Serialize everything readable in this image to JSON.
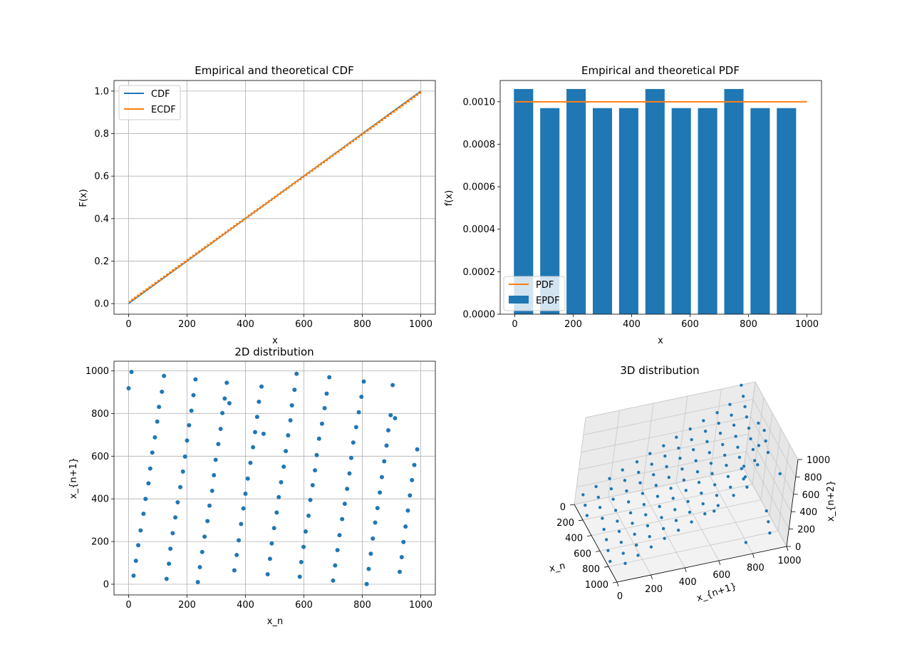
{
  "colors": {
    "blue": "#1f77b4",
    "orange": "#ff7f0e",
    "grid": "#b0b0b0"
  },
  "chart_data": [
    {
      "type": "line",
      "title": "Empirical and theoretical CDF",
      "xlabel": "x",
      "ylabel": "F(x)",
      "xlim": [
        -50,
        1050
      ],
      "ylim": [
        -0.05,
        1.05
      ],
      "xticks": [
        0,
        200,
        400,
        600,
        800,
        1000
      ],
      "yticks": [
        0.0,
        0.2,
        0.4,
        0.6,
        0.8,
        1.0
      ],
      "xtick_labels": [
        "0",
        "200",
        "400",
        "600",
        "800",
        "1000"
      ],
      "ytick_labels": [
        "0.0",
        "0.2",
        "0.4",
        "0.6",
        "0.8",
        "1.0"
      ],
      "grid": true,
      "legend": "upper-left",
      "series": [
        {
          "name": "CDF",
          "color": "#1f77b4",
          "x": [
            0,
            1000
          ],
          "y": [
            0.0,
            1.0
          ]
        },
        {
          "name": "ECDF",
          "color": "#ff7f0e",
          "x": [
            0,
            1000
          ],
          "y": [
            0.01,
            1.0
          ],
          "step": true
        }
      ]
    },
    {
      "type": "bar",
      "title": "Empirical and theoretical PDF",
      "xlabel": "x",
      "ylabel": "f(x)",
      "xlim": [
        -50,
        1050
      ],
      "ylim": [
        0,
        0.0011
      ],
      "xticks": [
        0,
        200,
        400,
        600,
        800,
        1000
      ],
      "yticks": [
        0.0,
        0.0002,
        0.0004,
        0.0006,
        0.0008,
        0.001
      ],
      "xtick_labels": [
        "0",
        "200",
        "400",
        "600",
        "800",
        "1000"
      ],
      "ytick_labels": [
        "0.0000",
        "0.0002",
        "0.0004",
        "0.0006",
        "0.0008",
        "0.0010"
      ],
      "grid": false,
      "legend": "lower-left",
      "bar_width": 66,
      "bars": {
        "name": "EPDF",
        "color": "#1f77b4",
        "x": [
          30,
          120,
          210,
          300,
          390,
          480,
          570,
          660,
          750,
          840,
          930
        ],
        "values": [
          0.00106,
          0.00097,
          0.00106,
          0.00097,
          0.00097,
          0.00106,
          0.00097,
          0.00097,
          0.00106,
          0.00097,
          0.00097
        ]
      },
      "line": {
        "name": "PDF",
        "color": "#ff7f0e",
        "x": [
          0,
          1000
        ],
        "y": [
          0.001,
          0.001
        ]
      }
    },
    {
      "type": "scatter",
      "title": "2D distribution",
      "xlabel": "x_n",
      "ylabel": "x_{n+1}",
      "xlim": [
        -50,
        1050
      ],
      "ylim": [
        -50,
        1045
      ],
      "xticks": [
        0,
        200,
        400,
        600,
        800,
        1000
      ],
      "yticks": [
        0,
        200,
        400,
        600,
        800,
        1000
      ],
      "xtick_labels": [
        "0",
        "200",
        "400",
        "600",
        "800",
        "1000"
      ],
      "ytick_labels": [
        "0",
        "200",
        "400",
        "600",
        "800",
        "1000"
      ],
      "grid": true,
      "color": "#1f77b4",
      "points": [
        [
          0,
          918
        ],
        [
          10,
          995
        ],
        [
          17,
          40
        ],
        [
          25,
          110
        ],
        [
          33,
          183
        ],
        [
          41,
          252
        ],
        [
          51,
          330
        ],
        [
          58,
          400
        ],
        [
          68,
          473
        ],
        [
          74,
          542
        ],
        [
          81,
          617
        ],
        [
          90,
          688
        ],
        [
          98,
          762
        ],
        [
          104,
          831
        ],
        [
          114,
          902
        ],
        [
          121,
          976
        ],
        [
          130,
          25
        ],
        [
          138,
          96
        ],
        [
          143,
          166
        ],
        [
          151,
          239
        ],
        [
          160,
          313
        ],
        [
          168,
          384
        ],
        [
          177,
          455
        ],
        [
          186,
          528
        ],
        [
          193,
          598
        ],
        [
          200,
          673
        ],
        [
          207,
          745
        ],
        [
          215,
          813
        ],
        [
          222,
          886
        ],
        [
          229,
          960
        ],
        [
          237,
          10
        ],
        [
          244,
          80
        ],
        [
          252,
          151
        ],
        [
          260,
          223
        ],
        [
          270,
          296
        ],
        [
          277,
          368
        ],
        [
          286,
          438
        ],
        [
          292,
          511
        ],
        [
          298,
          583
        ],
        [
          307,
          657
        ],
        [
          315,
          728
        ],
        [
          321,
          802
        ],
        [
          329,
          870
        ],
        [
          336,
          944
        ],
        [
          345,
          848
        ],
        [
          362,
          65
        ],
        [
          370,
          137
        ],
        [
          377,
          206
        ],
        [
          385,
          282
        ],
        [
          393,
          355
        ],
        [
          400,
          424
        ],
        [
          408,
          495
        ],
        [
          417,
          569
        ],
        [
          426,
          642
        ],
        [
          433,
          713
        ],
        [
          440,
          784
        ],
        [
          446,
          855
        ],
        [
          455,
          926
        ],
        [
          462,
          705
        ],
        [
          476,
          47
        ],
        [
          484,
          119
        ],
        [
          490,
          191
        ],
        [
          498,
          263
        ],
        [
          507,
          336
        ],
        [
          514,
          408
        ],
        [
          522,
          478
        ],
        [
          531,
          551
        ],
        [
          538,
          624
        ],
        [
          546,
          698
        ],
        [
          554,
          768
        ],
        [
          559,
          838
        ],
        [
          568,
          911
        ],
        [
          575,
          986
        ],
        [
          586,
          35
        ],
        [
          591,
          104
        ],
        [
          599,
          175
        ],
        [
          606,
          247
        ],
        [
          616,
          321
        ],
        [
          622,
          395
        ],
        [
          630,
          464
        ],
        [
          638,
          534
        ],
        [
          644,
          605
        ],
        [
          652,
          682
        ],
        [
          662,
          752
        ],
        [
          671,
          825
        ],
        [
          678,
          893
        ],
        [
          687,
          970
        ],
        [
          700,
          17
        ],
        [
          707,
          88
        ],
        [
          715,
          160
        ],
        [
          722,
          230
        ],
        [
          731,
          305
        ],
        [
          740,
          377
        ],
        [
          748,
          447
        ],
        [
          756,
          519
        ],
        [
          762,
          592
        ],
        [
          769,
          664
        ],
        [
          779,
          736
        ],
        [
          788,
          806
        ],
        [
          797,
          878
        ],
        [
          805,
          950
        ],
        [
          815,
          1
        ],
        [
          822,
          72
        ],
        [
          829,
          143
        ],
        [
          836,
          214
        ],
        [
          844,
          289
        ],
        [
          852,
          357
        ],
        [
          860,
          430
        ],
        [
          867,
          502
        ],
        [
          875,
          576
        ],
        [
          883,
          650
        ],
        [
          889,
          721
        ],
        [
          897,
          792
        ],
        [
          904,
          933
        ],
        [
          912,
          778
        ],
        [
          928,
          58
        ],
        [
          935,
          127
        ],
        [
          941,
          198
        ],
        [
          948,
          270
        ],
        [
          956,
          345
        ],
        [
          963,
          416
        ],
        [
          970,
          488
        ],
        [
          978,
          559
        ],
        [
          988,
          632
        ]
      ]
    },
    {
      "type": "scatter",
      "title": "3D distribution",
      "xlabel": "x_n",
      "ylabel": "x_{n+1}",
      "zlabel": "x_{n+2}",
      "xlim": [
        0,
        1000
      ],
      "ylim": [
        0,
        1000
      ],
      "zlim": [
        0,
        1000
      ],
      "xticks": [
        0,
        200,
        400,
        600,
        800,
        1000
      ],
      "yticks": [
        0,
        200,
        400,
        600,
        800,
        1000
      ],
      "zticks": [
        0,
        200,
        400,
        600,
        800,
        1000
      ],
      "xtick_labels": [
        "0",
        "200",
        "400",
        "600",
        "800",
        "1000"
      ],
      "ytick_labels": [
        "0",
        "200",
        "400",
        "600",
        "800",
        "1000"
      ],
      "ztick_labels": [
        "0",
        "200",
        "400",
        "600",
        "800",
        "1000"
      ],
      "grid": true,
      "color": "#1f77b4",
      "points": [
        [
          0,
          918,
          995
        ],
        [
          10,
          995,
          40
        ],
        [
          17,
          40,
          110
        ],
        [
          25,
          110,
          183
        ],
        [
          33,
          183,
          252
        ],
        [
          41,
          252,
          330
        ],
        [
          51,
          330,
          400
        ],
        [
          58,
          400,
          473
        ],
        [
          68,
          473,
          542
        ],
        [
          74,
          542,
          617
        ],
        [
          81,
          617,
          688
        ],
        [
          90,
          688,
          762
        ],
        [
          98,
          762,
          831
        ],
        [
          104,
          831,
          902
        ],
        [
          114,
          902,
          976
        ],
        [
          121,
          976,
          25
        ],
        [
          130,
          25,
          96
        ],
        [
          138,
          96,
          166
        ],
        [
          143,
          166,
          239
        ],
        [
          151,
          239,
          313
        ],
        [
          160,
          313,
          384
        ],
        [
          168,
          384,
          455
        ],
        [
          177,
          455,
          528
        ],
        [
          186,
          528,
          598
        ],
        [
          193,
          598,
          673
        ],
        [
          200,
          673,
          745
        ],
        [
          207,
          745,
          813
        ],
        [
          215,
          813,
          886
        ],
        [
          222,
          886,
          960
        ],
        [
          229,
          960,
          10
        ],
        [
          237,
          10,
          80
        ],
        [
          244,
          80,
          151
        ],
        [
          252,
          151,
          223
        ],
        [
          260,
          223,
          296
        ],
        [
          270,
          296,
          368
        ],
        [
          277,
          368,
          438
        ],
        [
          286,
          438,
          511
        ],
        [
          292,
          511,
          583
        ],
        [
          298,
          583,
          657
        ],
        [
          307,
          657,
          728
        ],
        [
          315,
          728,
          802
        ],
        [
          321,
          802,
          870
        ],
        [
          329,
          870,
          944
        ],
        [
          336,
          944,
          848
        ],
        [
          345,
          848,
          65
        ],
        [
          362,
          65,
          137
        ],
        [
          370,
          137,
          206
        ],
        [
          377,
          206,
          282
        ],
        [
          385,
          282,
          355
        ],
        [
          393,
          355,
          424
        ],
        [
          400,
          424,
          495
        ],
        [
          408,
          495,
          569
        ],
        [
          417,
          569,
          642
        ],
        [
          426,
          642,
          713
        ],
        [
          433,
          713,
          784
        ],
        [
          440,
          784,
          855
        ],
        [
          446,
          855,
          926
        ],
        [
          455,
          926,
          705
        ],
        [
          462,
          705,
          47
        ],
        [
          476,
          47,
          119
        ],
        [
          484,
          119,
          191
        ],
        [
          490,
          191,
          263
        ],
        [
          498,
          263,
          336
        ],
        [
          507,
          336,
          408
        ],
        [
          514,
          408,
          478
        ],
        [
          522,
          478,
          551
        ],
        [
          531,
          551,
          624
        ],
        [
          538,
          624,
          698
        ],
        [
          546,
          698,
          768
        ],
        [
          554,
          768,
          838
        ],
        [
          559,
          838,
          911
        ],
        [
          568,
          911,
          986
        ],
        [
          575,
          986,
          35
        ],
        [
          586,
          35,
          104
        ],
        [
          591,
          104,
          175
        ],
        [
          599,
          175,
          247
        ],
        [
          606,
          247,
          321
        ],
        [
          616,
          321,
          395
        ],
        [
          622,
          395,
          464
        ],
        [
          630,
          464,
          534
        ],
        [
          638,
          534,
          605
        ],
        [
          644,
          605,
          682
        ],
        [
          652,
          682,
          752
        ],
        [
          662,
          752,
          825
        ],
        [
          671,
          825,
          893
        ],
        [
          678,
          893,
          970
        ],
        [
          687,
          970,
          17
        ],
        [
          700,
          17,
          88
        ],
        [
          707,
          88,
          160
        ],
        [
          715,
          160,
          230
        ],
        [
          722,
          230,
          305
        ],
        [
          731,
          305,
          377
        ],
        [
          740,
          377,
          447
        ],
        [
          748,
          447,
          519
        ],
        [
          756,
          519,
          592
        ],
        [
          762,
          592,
          664
        ],
        [
          769,
          664,
          736
        ],
        [
          779,
          736,
          806
        ],
        [
          788,
          806,
          878
        ],
        [
          797,
          878,
          950
        ],
        [
          805,
          950,
          1
        ],
        [
          815,
          1,
          72
        ],
        [
          822,
          72,
          143
        ],
        [
          829,
          143,
          214
        ],
        [
          836,
          214,
          289
        ],
        [
          844,
          289,
          357
        ],
        [
          852,
          357,
          430
        ],
        [
          860,
          430,
          502
        ],
        [
          867,
          502,
          576
        ],
        [
          875,
          576,
          650
        ],
        [
          883,
          650,
          721
        ],
        [
          889,
          721,
          792
        ],
        [
          897,
          792,
          933
        ],
        [
          904,
          933,
          778
        ],
        [
          912,
          778,
          58
        ],
        [
          928,
          58,
          127
        ],
        [
          935,
          127,
          198
        ],
        [
          941,
          198,
          270
        ],
        [
          948,
          270,
          345
        ],
        [
          956,
          345,
          416
        ],
        [
          963,
          416,
          488
        ],
        [
          970,
          488,
          559
        ],
        [
          978,
          559,
          632
        ]
      ]
    }
  ]
}
